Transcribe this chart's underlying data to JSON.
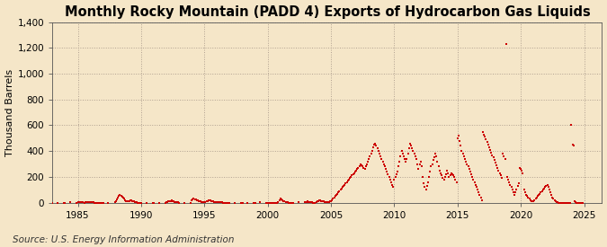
{
  "title": "Monthly Rocky Mountain (PADD 4) Exports of Hydrocarbon Gas Liquids",
  "ylabel": "Thousand Barrels",
  "source": "Source: U.S. Energy Information Administration",
  "background_color": "#f5e6c8",
  "plot_background_color": "#f5e6c8",
  "marker_color": "#cc0000",
  "grid_color": "#b0a090",
  "title_fontsize": 10.5,
  "ylabel_fontsize": 8,
  "source_fontsize": 7.5,
  "ylim": [
    0,
    1400
  ],
  "yticks": [
    0,
    200,
    400,
    600,
    800,
    1000,
    1200,
    1400
  ],
  "xtick_years": [
    1985,
    1990,
    1995,
    2000,
    2005,
    2010,
    2015,
    2020,
    2025
  ],
  "xstart_year": 1983,
  "xend_year": 2026,
  "data": {
    "1983-01": 0,
    "1983-06": 0,
    "1983-12": 0,
    "1984-01": 0,
    "1984-06": 2,
    "1984-12": 0,
    "1985-01": 3,
    "1985-02": 2,
    "1985-03": 5,
    "1985-04": 4,
    "1985-05": 3,
    "1985-06": 2,
    "1985-07": 1,
    "1985-08": 2,
    "1985-09": 3,
    "1985-10": 4,
    "1985-11": 5,
    "1985-12": 6,
    "1986-01": 5,
    "1986-02": 4,
    "1986-03": 3,
    "1986-04": 2,
    "1986-05": 1,
    "1986-06": 0,
    "1986-07": 0,
    "1986-08": 0,
    "1986-09": 0,
    "1986-10": 0,
    "1986-11": 0,
    "1986-12": 0,
    "1987-01": 0,
    "1987-06": 0,
    "1987-12": 2,
    "1988-01": 15,
    "1988-02": 25,
    "1988-03": 40,
    "1988-04": 55,
    "1988-05": 60,
    "1988-06": 50,
    "1988-07": 45,
    "1988-08": 38,
    "1988-09": 30,
    "1988-10": 22,
    "1988-11": 15,
    "1988-12": 10,
    "1989-01": 12,
    "1989-02": 15,
    "1989-03": 18,
    "1989-04": 20,
    "1989-05": 15,
    "1989-06": 10,
    "1989-07": 5,
    "1989-08": 3,
    "1989-09": 2,
    "1989-10": 0,
    "1989-11": 0,
    "1989-12": 0,
    "1990-01": 0,
    "1990-06": 0,
    "1990-12": 0,
    "1991-01": 0,
    "1991-06": 0,
    "1991-12": 0,
    "1992-01": 5,
    "1992-02": 8,
    "1992-03": 10,
    "1992-04": 12,
    "1992-05": 15,
    "1992-06": 18,
    "1992-07": 15,
    "1992-08": 12,
    "1992-09": 8,
    "1992-10": 5,
    "1992-11": 3,
    "1992-12": 2,
    "1993-01": 0,
    "1993-06": 0,
    "1993-12": 0,
    "1994-01": 20,
    "1994-02": 25,
    "1994-03": 30,
    "1994-04": 28,
    "1994-05": 25,
    "1994-06": 22,
    "1994-07": 18,
    "1994-08": 15,
    "1994-09": 10,
    "1994-10": 8,
    "1994-11": 5,
    "1994-12": 3,
    "1995-01": 5,
    "1995-02": 8,
    "1995-03": 12,
    "1995-04": 15,
    "1995-05": 18,
    "1995-06": 20,
    "1995-07": 18,
    "1995-08": 15,
    "1995-09": 10,
    "1995-10": 8,
    "1995-11": 5,
    "1995-12": 3,
    "1996-01": 2,
    "1996-02": 5,
    "1996-03": 8,
    "1996-04": 6,
    "1996-05": 4,
    "1996-06": 2,
    "1996-07": 0,
    "1996-08": 0,
    "1996-09": 0,
    "1996-10": 0,
    "1996-11": 0,
    "1996-12": 0,
    "1997-01": 0,
    "1997-06": 0,
    "1997-12": 0,
    "1998-01": 0,
    "1998-06": 0,
    "1998-12": 0,
    "1999-01": 0,
    "1999-06": 2,
    "1999-12": 0,
    "2000-01": 0,
    "2000-02": 0,
    "2000-03": 0,
    "2000-04": 0,
    "2000-05": 0,
    "2000-06": 0,
    "2000-07": 0,
    "2000-08": 0,
    "2000-09": 0,
    "2000-10": 0,
    "2000-11": 5,
    "2000-12": 20,
    "2001-01": 30,
    "2001-02": 25,
    "2001-03": 20,
    "2001-04": 15,
    "2001-05": 10,
    "2001-06": 5,
    "2001-07": 3,
    "2001-08": 2,
    "2001-09": 0,
    "2001-10": 0,
    "2001-11": 0,
    "2001-12": 0,
    "2002-01": 0,
    "2002-06": 3,
    "2002-12": 5,
    "2003-01": 5,
    "2003-02": 8,
    "2003-03": 10,
    "2003-04": 8,
    "2003-05": 6,
    "2003-06": 4,
    "2003-07": 2,
    "2003-08": 0,
    "2003-09": 0,
    "2003-10": 0,
    "2003-11": 5,
    "2003-12": 10,
    "2004-01": 15,
    "2004-02": 20,
    "2004-03": 18,
    "2004-04": 15,
    "2004-05": 12,
    "2004-06": 10,
    "2004-07": 8,
    "2004-08": 6,
    "2004-09": 4,
    "2004-10": 2,
    "2004-11": 5,
    "2004-12": 10,
    "2005-01": 15,
    "2005-02": 20,
    "2005-03": 30,
    "2005-04": 40,
    "2005-05": 50,
    "2005-06": 60,
    "2005-07": 70,
    "2005-08": 80,
    "2005-09": 90,
    "2005-10": 100,
    "2005-11": 110,
    "2005-12": 120,
    "2006-01": 130,
    "2006-02": 140,
    "2006-03": 150,
    "2006-04": 160,
    "2006-05": 170,
    "2006-06": 180,
    "2006-07": 190,
    "2006-08": 200,
    "2006-09": 210,
    "2006-10": 220,
    "2006-11": 230,
    "2006-12": 240,
    "2007-01": 250,
    "2007-02": 260,
    "2007-03": 270,
    "2007-04": 280,
    "2007-05": 300,
    "2007-06": 290,
    "2007-07": 280,
    "2007-08": 270,
    "2007-09": 260,
    "2007-10": 280,
    "2007-11": 300,
    "2007-12": 320,
    "2008-01": 340,
    "2008-02": 360,
    "2008-03": 380,
    "2008-04": 400,
    "2008-05": 430,
    "2008-06": 450,
    "2008-07": 460,
    "2008-08": 440,
    "2008-09": 420,
    "2008-10": 400,
    "2008-11": 380,
    "2008-12": 360,
    "2009-01": 340,
    "2009-02": 320,
    "2009-03": 300,
    "2009-04": 280,
    "2009-05": 260,
    "2009-06": 240,
    "2009-07": 220,
    "2009-08": 200,
    "2009-09": 180,
    "2009-10": 160,
    "2009-11": 140,
    "2009-12": 120,
    "2010-01": 180,
    "2010-02": 200,
    "2010-03": 220,
    "2010-04": 240,
    "2010-05": 280,
    "2010-06": 320,
    "2010-07": 360,
    "2010-08": 400,
    "2010-09": 380,
    "2010-10": 360,
    "2010-11": 340,
    "2010-12": 320,
    "2011-01": 340,
    "2011-02": 380,
    "2011-03": 420,
    "2011-04": 460,
    "2011-05": 440,
    "2011-06": 420,
    "2011-07": 400,
    "2011-08": 380,
    "2011-09": 360,
    "2011-10": 340,
    "2011-11": 300,
    "2011-12": 260,
    "2012-01": 300,
    "2012-02": 320,
    "2012-03": 280,
    "2012-04": 200,
    "2012-05": 150,
    "2012-06": 120,
    "2012-07": 100,
    "2012-08": 130,
    "2012-09": 160,
    "2012-10": 200,
    "2012-11": 240,
    "2012-12": 280,
    "2013-01": 300,
    "2013-02": 330,
    "2013-03": 350,
    "2013-04": 380,
    "2013-05": 360,
    "2013-06": 320,
    "2013-07": 280,
    "2013-08": 250,
    "2013-09": 230,
    "2013-10": 210,
    "2013-11": 190,
    "2013-12": 180,
    "2014-01": 200,
    "2014-02": 220,
    "2014-03": 250,
    "2014-04": 230,
    "2014-05": 200,
    "2014-06": 210,
    "2014-07": 230,
    "2014-08": 220,
    "2014-09": 210,
    "2014-10": 200,
    "2014-11": 180,
    "2014-12": 160,
    "2015-01": 500,
    "2015-02": 520,
    "2015-03": 480,
    "2015-04": 440,
    "2015-05": 400,
    "2015-06": 380,
    "2015-07": 360,
    "2015-08": 340,
    "2015-09": 320,
    "2015-10": 300,
    "2015-11": 280,
    "2015-12": 260,
    "2016-01": 240,
    "2016-02": 220,
    "2016-03": 200,
    "2016-04": 180,
    "2016-05": 160,
    "2016-06": 140,
    "2016-07": 120,
    "2016-08": 100,
    "2016-09": 80,
    "2016-10": 60,
    "2016-11": 40,
    "2016-12": 20,
    "2017-01": 550,
    "2017-02": 530,
    "2017-03": 510,
    "2017-04": 490,
    "2017-05": 470,
    "2017-06": 450,
    "2017-07": 430,
    "2017-08": 410,
    "2017-09": 390,
    "2017-10": 370,
    "2017-11": 350,
    "2017-12": 330,
    "2018-01": 310,
    "2018-02": 290,
    "2018-03": 270,
    "2018-04": 250,
    "2018-05": 230,
    "2018-06": 210,
    "2018-07": 190,
    "2018-08": 380,
    "2018-09": 360,
    "2018-10": 340,
    "2018-11": 1230,
    "2018-12": 200,
    "2019-01": 180,
    "2019-02": 160,
    "2019-03": 140,
    "2019-04": 120,
    "2019-05": 100,
    "2019-06": 80,
    "2019-07": 60,
    "2019-08": 80,
    "2019-09": 100,
    "2019-10": 130,
    "2019-11": 150,
    "2019-12": 270,
    "2020-01": 260,
    "2020-02": 250,
    "2020-03": 230,
    "2020-04": 100,
    "2020-05": 80,
    "2020-06": 60,
    "2020-07": 50,
    "2020-08": 40,
    "2020-09": 30,
    "2020-10": 20,
    "2020-11": 15,
    "2020-12": 10,
    "2021-01": 15,
    "2021-02": 20,
    "2021-03": 30,
    "2021-04": 40,
    "2021-05": 50,
    "2021-06": 60,
    "2021-07": 70,
    "2021-08": 80,
    "2021-09": 90,
    "2021-10": 100,
    "2021-11": 110,
    "2021-12": 120,
    "2022-01": 130,
    "2022-02": 140,
    "2022-03": 120,
    "2022-04": 100,
    "2022-05": 80,
    "2022-06": 60,
    "2022-07": 40,
    "2022-08": 30,
    "2022-09": 20,
    "2022-10": 10,
    "2022-11": 5,
    "2022-12": 2,
    "2023-01": 0,
    "2023-02": 0,
    "2023-03": 0,
    "2023-04": 0,
    "2023-05": 0,
    "2023-06": 0,
    "2023-07": 0,
    "2023-08": 0,
    "2023-09": 0,
    "2023-10": 0,
    "2023-11": 0,
    "2023-12": 0,
    "2024-01": 600,
    "2024-02": 450,
    "2024-03": 440,
    "2024-04": 10,
    "2024-05": 5,
    "2024-06": 0,
    "2024-07": 0,
    "2024-08": 0,
    "2024-09": 0,
    "2024-10": 0,
    "2024-11": 0,
    "2024-12": 0
  }
}
